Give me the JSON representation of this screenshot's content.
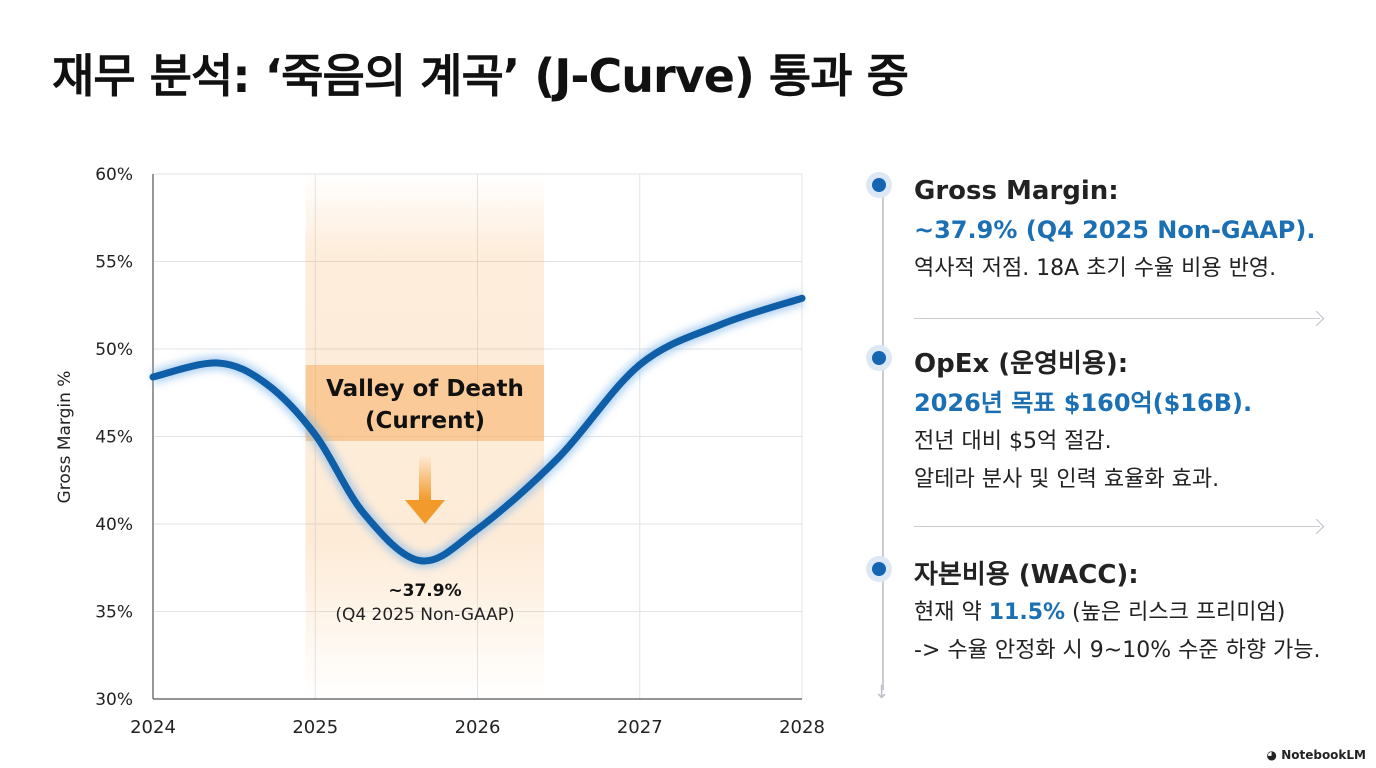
{
  "title": "재무 분석: ‘죽음의 계곡’ (J-Curve) 통과 중",
  "chart_data": {
    "type": "line",
    "ylabel": "Gross Margin %",
    "xlabel": "",
    "xlim": [
      2024,
      2028
    ],
    "ylim": [
      30,
      60
    ],
    "x_ticks": [
      "2024",
      "2025",
      "2026",
      "2027",
      "2028"
    ],
    "y_ticks": [
      "30%",
      "35%",
      "40%",
      "45%",
      "50%",
      "55%",
      "60%"
    ],
    "grid": true,
    "series": [
      {
        "color": "#0f5fa8",
        "points": [
          [
            2024,
            48.4
          ],
          [
            2024.4,
            49.2
          ],
          [
            2024.7,
            48.0
          ],
          [
            2025,
            45.1
          ],
          [
            2025.3,
            40.6
          ],
          [
            2025.65,
            37.9
          ],
          [
            2026,
            39.7
          ],
          [
            2026.5,
            43.8
          ],
          [
            2027,
            49.1
          ],
          [
            2027.5,
            51.4
          ],
          [
            2028,
            52.9
          ]
        ]
      }
    ],
    "highlight": {
      "from": 2024.94,
      "to": 2026.41,
      "color": "#f7a54a",
      "label_line1": "Valley of Death",
      "label_line2": "(Current)"
    },
    "annotation": {
      "value": "~37.9%",
      "note": "(Q4 2025 Non-GAAP)",
      "arrow_color": "#f39a2d"
    }
  },
  "panel": {
    "items": [
      {
        "heading": "Gross Margin:",
        "highlight": "~37.9% (Q4 2025 Non-GAAP).",
        "lines": [
          "역사적 저점. 18A 초기 수율 비용 반영."
        ]
      },
      {
        "heading": "OpEx (운영비용):",
        "highlight": "2026년 목표 $160억($16B).",
        "lines": [
          "전년 대비 $5억 절감.",
          "알테라 분사 및 인력 효율화 효과."
        ]
      },
      {
        "heading": "자본비용 (WACC):",
        "line1_pre": "현재 약 ",
        "line1_hl": "11.5%",
        "line1_post": " (높은 리스크 프리미엄)",
        "line2": "-> 수율 안정화 시 9~10% 수준 하향 가능."
      }
    ]
  },
  "brand": "NotebookLM"
}
